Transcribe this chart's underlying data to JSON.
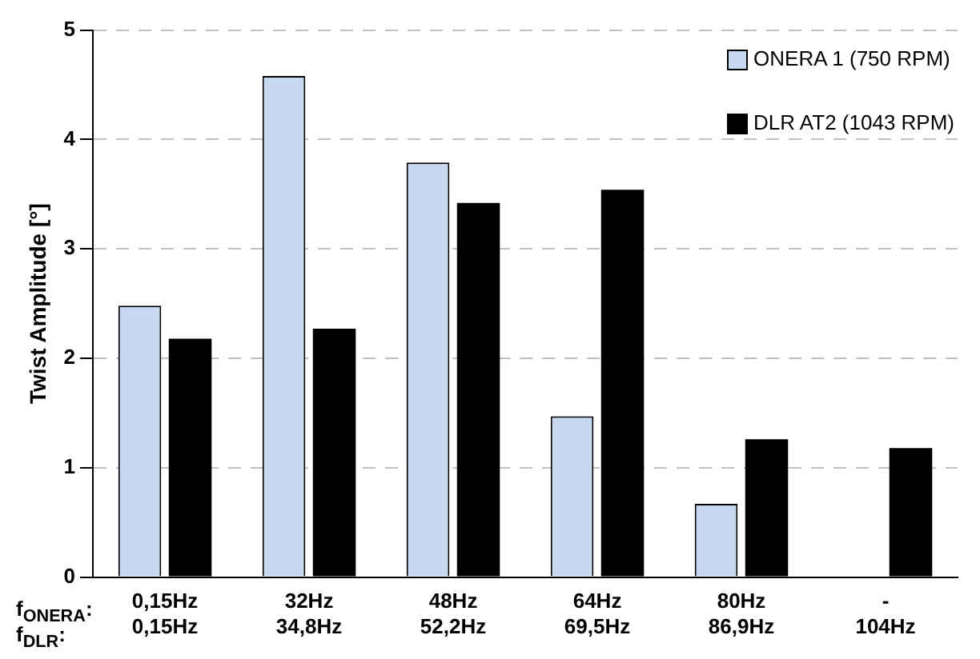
{
  "chart_data": {
    "type": "bar",
    "ylabel": "Twist Amplitude [°]",
    "categories": [
      "0,15Hz\n0,15Hz",
      "32Hz\n34,8Hz",
      "48Hz\n52,2Hz",
      "64Hz\n69,5Hz",
      "80Hz\n86,9Hz",
      "-\n104Hz"
    ],
    "series": [
      {
        "name": "ONERA 1 (750 RPM)",
        "color": "#c6d9f1",
        "values": [
          2.48,
          4.58,
          3.79,
          1.47,
          0.67,
          null
        ]
      },
      {
        "name": "DLR AT2 (1043 RPM)",
        "color": "#000000",
        "values": [
          2.18,
          2.27,
          3.42,
          3.54,
          1.26,
          1.18
        ]
      }
    ],
    "ylim": [
      0,
      5
    ],
    "yticks": [
      0,
      1,
      2,
      3,
      4,
      5
    ],
    "grid": "y",
    "legend": "top right",
    "annotations": [
      "f$_{ONERA}$:",
      "f$_{DLR}$:"
    ]
  }
}
